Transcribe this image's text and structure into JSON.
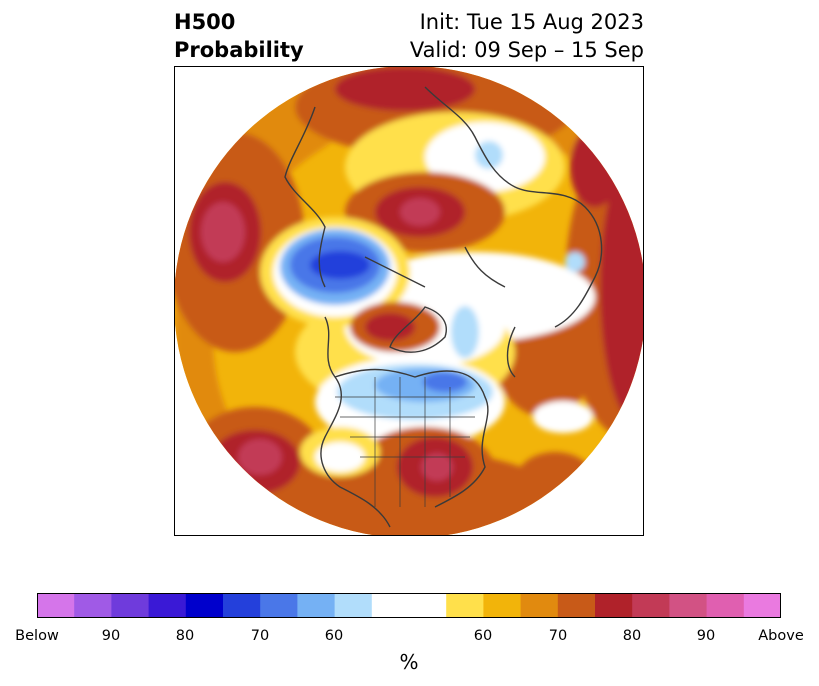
{
  "header": {
    "title_line1": "H500",
    "title_line2": "Probability",
    "init_text": "Init: Tue 15 Aug 2023",
    "valid_text": "Valid: 09 Sep – 15 Sep"
  },
  "map": {
    "projection": "north-polar-stereographic",
    "variable": "H500",
    "features": [
      {
        "category": "above",
        "level": 80,
        "location": "Siberia / Arctic Ocean"
      },
      {
        "category": "above",
        "level": 80,
        "location": "Hudson Bay / Canadian Arctic"
      },
      {
        "category": "above",
        "level": 80,
        "location": "Southeastern United States"
      },
      {
        "category": "above",
        "level": 90,
        "location": "North Pacific west"
      },
      {
        "category": "above",
        "level": 90,
        "location": "Eastern Pacific off Mexico"
      },
      {
        "category": "above",
        "level": 80,
        "location": "Western Russia / Ural region"
      },
      {
        "category": "below",
        "level": 80,
        "location": "Northwest Pacific / Kamchatka"
      },
      {
        "category": "below",
        "level": 60,
        "location": "Central Canada / Great Lakes"
      },
      {
        "category": "below",
        "level": 60,
        "location": "Scandinavia"
      }
    ]
  },
  "colorbar": {
    "unit_label": "%",
    "tick_labels": [
      "Below",
      "90",
      "80",
      "70",
      "60",
      "60",
      "70",
      "80",
      "90",
      "Above"
    ],
    "colors": {
      "below": [
        "#d575ea",
        "#a05ae6",
        "#6f3bdc",
        "#3a19d6",
        "#0000cc",
        "#2440db",
        "#4a77e8",
        "#75b1f4",
        "#b1ddfb"
      ],
      "neutral": "#ffffff",
      "above": [
        "#ffe04b",
        "#f2b40a",
        "#e18a0f",
        "#c85a18",
        "#b0222a",
        "#c23a56",
        "#d25284",
        "#e05fb0",
        "#ea7ae0"
      ]
    }
  }
}
